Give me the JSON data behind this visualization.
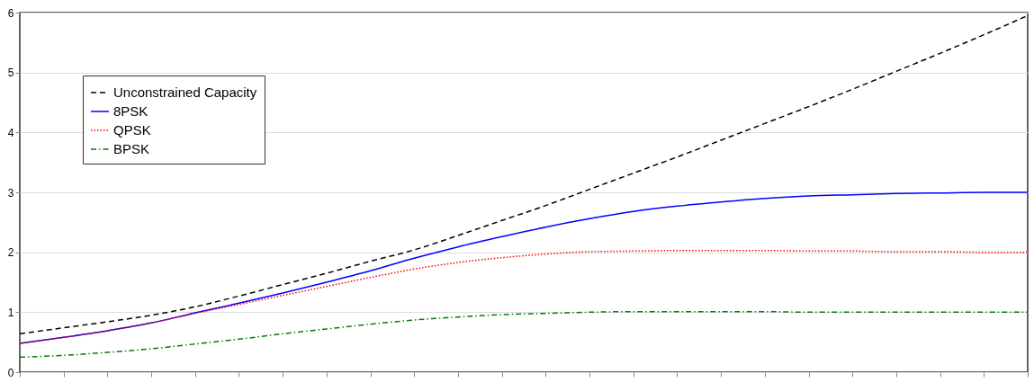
{
  "chart_data": {
    "type": "line",
    "categories": [
      null,
      null,
      null,
      null,
      null,
      null,
      null,
      null,
      null,
      null,
      null,
      null,
      null,
      null,
      null,
      null,
      null,
      null,
      null,
      null,
      null,
      null,
      null,
      null
    ],
    "ylim": [
      0,
      6
    ],
    "yticks": [
      0,
      1,
      2,
      3,
      4,
      5,
      6
    ],
    "grid": "y",
    "legend": "top left",
    "tick_labels": "y",
    "series": [
      {
        "name": "Unconstrained Capacity",
        "color": "#000000",
        "line_style": "dashed",
        "values": [
          0.64,
          0.74,
          0.84,
          0.95,
          1.09,
          1.27,
          1.46,
          1.65,
          1.85,
          2.04,
          2.28,
          2.53,
          2.78,
          3.05,
          3.32,
          3.59,
          3.87,
          4.15,
          4.43,
          4.72,
          5.02,
          5.32,
          5.63,
          5.95
        ]
      },
      {
        "name": "8PSK",
        "color": "#0000ff",
        "line_style": "solid",
        "values": [
          0.48,
          0.58,
          0.69,
          0.82,
          0.99,
          1.15,
          1.32,
          1.5,
          1.69,
          1.9,
          2.09,
          2.26,
          2.42,
          2.56,
          2.68,
          2.77,
          2.84,
          2.9,
          2.94,
          2.96,
          2.98,
          2.99,
          3.0,
          3.0
        ]
      },
      {
        "name": "QPSK",
        "color": "#ff0000",
        "line_style": "dotted",
        "values": [
          0.48,
          0.58,
          0.69,
          0.82,
          0.98,
          1.13,
          1.28,
          1.43,
          1.58,
          1.72,
          1.83,
          1.91,
          1.97,
          2.01,
          2.02,
          2.03,
          2.03,
          2.03,
          2.02,
          2.02,
          2.01,
          2.01,
          2.0,
          2.0
        ]
      },
      {
        "name": "BPSK",
        "color": "#008000",
        "line_style": "dashdot",
        "values": [
          0.25,
          0.28,
          0.33,
          0.39,
          0.47,
          0.55,
          0.64,
          0.72,
          0.8,
          0.87,
          0.92,
          0.96,
          0.98,
          1.0,
          1.01,
          1.01,
          1.01,
          1.01,
          1.0,
          1.0,
          1.0,
          1.0,
          1.0,
          1.0
        ]
      }
    ]
  }
}
